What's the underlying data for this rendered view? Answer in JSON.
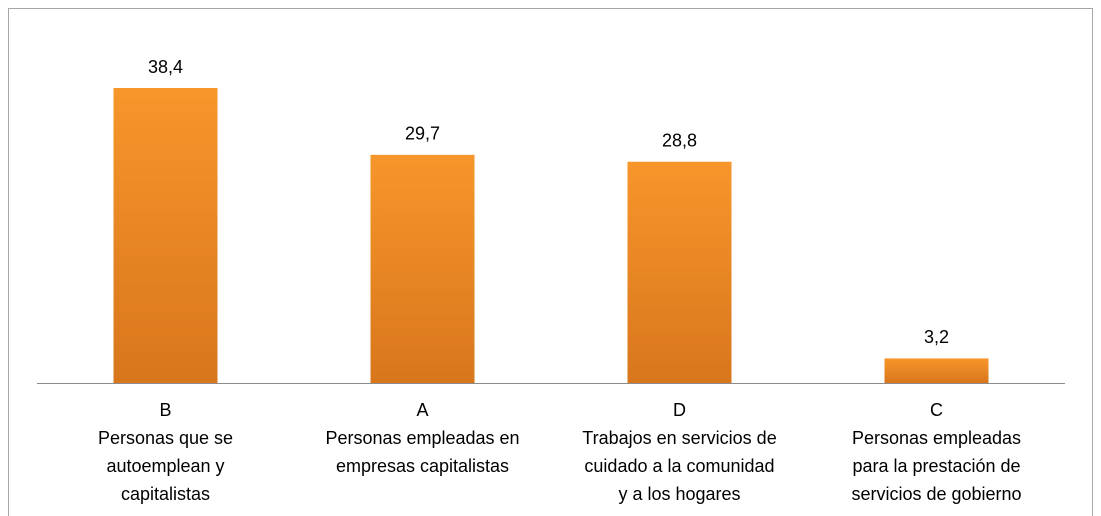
{
  "chart_data": {
    "type": "bar",
    "categories": [
      [
        "B",
        "Personas que se",
        "autoemplean y",
        "capitalistas"
      ],
      [
        "A",
        "Personas empleadas en",
        "empresas capitalistas"
      ],
      [
        "D",
        "Trabajos en servicios de",
        "cuidado a la comunidad",
        "y a los hogares"
      ],
      [
        "C",
        "Personas empleadas",
        "para la prestación de",
        "servicios de gobierno"
      ]
    ],
    "values": [
      38.4,
      29.7,
      28.8,
      3.2
    ],
    "value_labels": [
      "38,4",
      "29,7",
      "28,8",
      "3,2"
    ],
    "color": "#f7962b"
  }
}
